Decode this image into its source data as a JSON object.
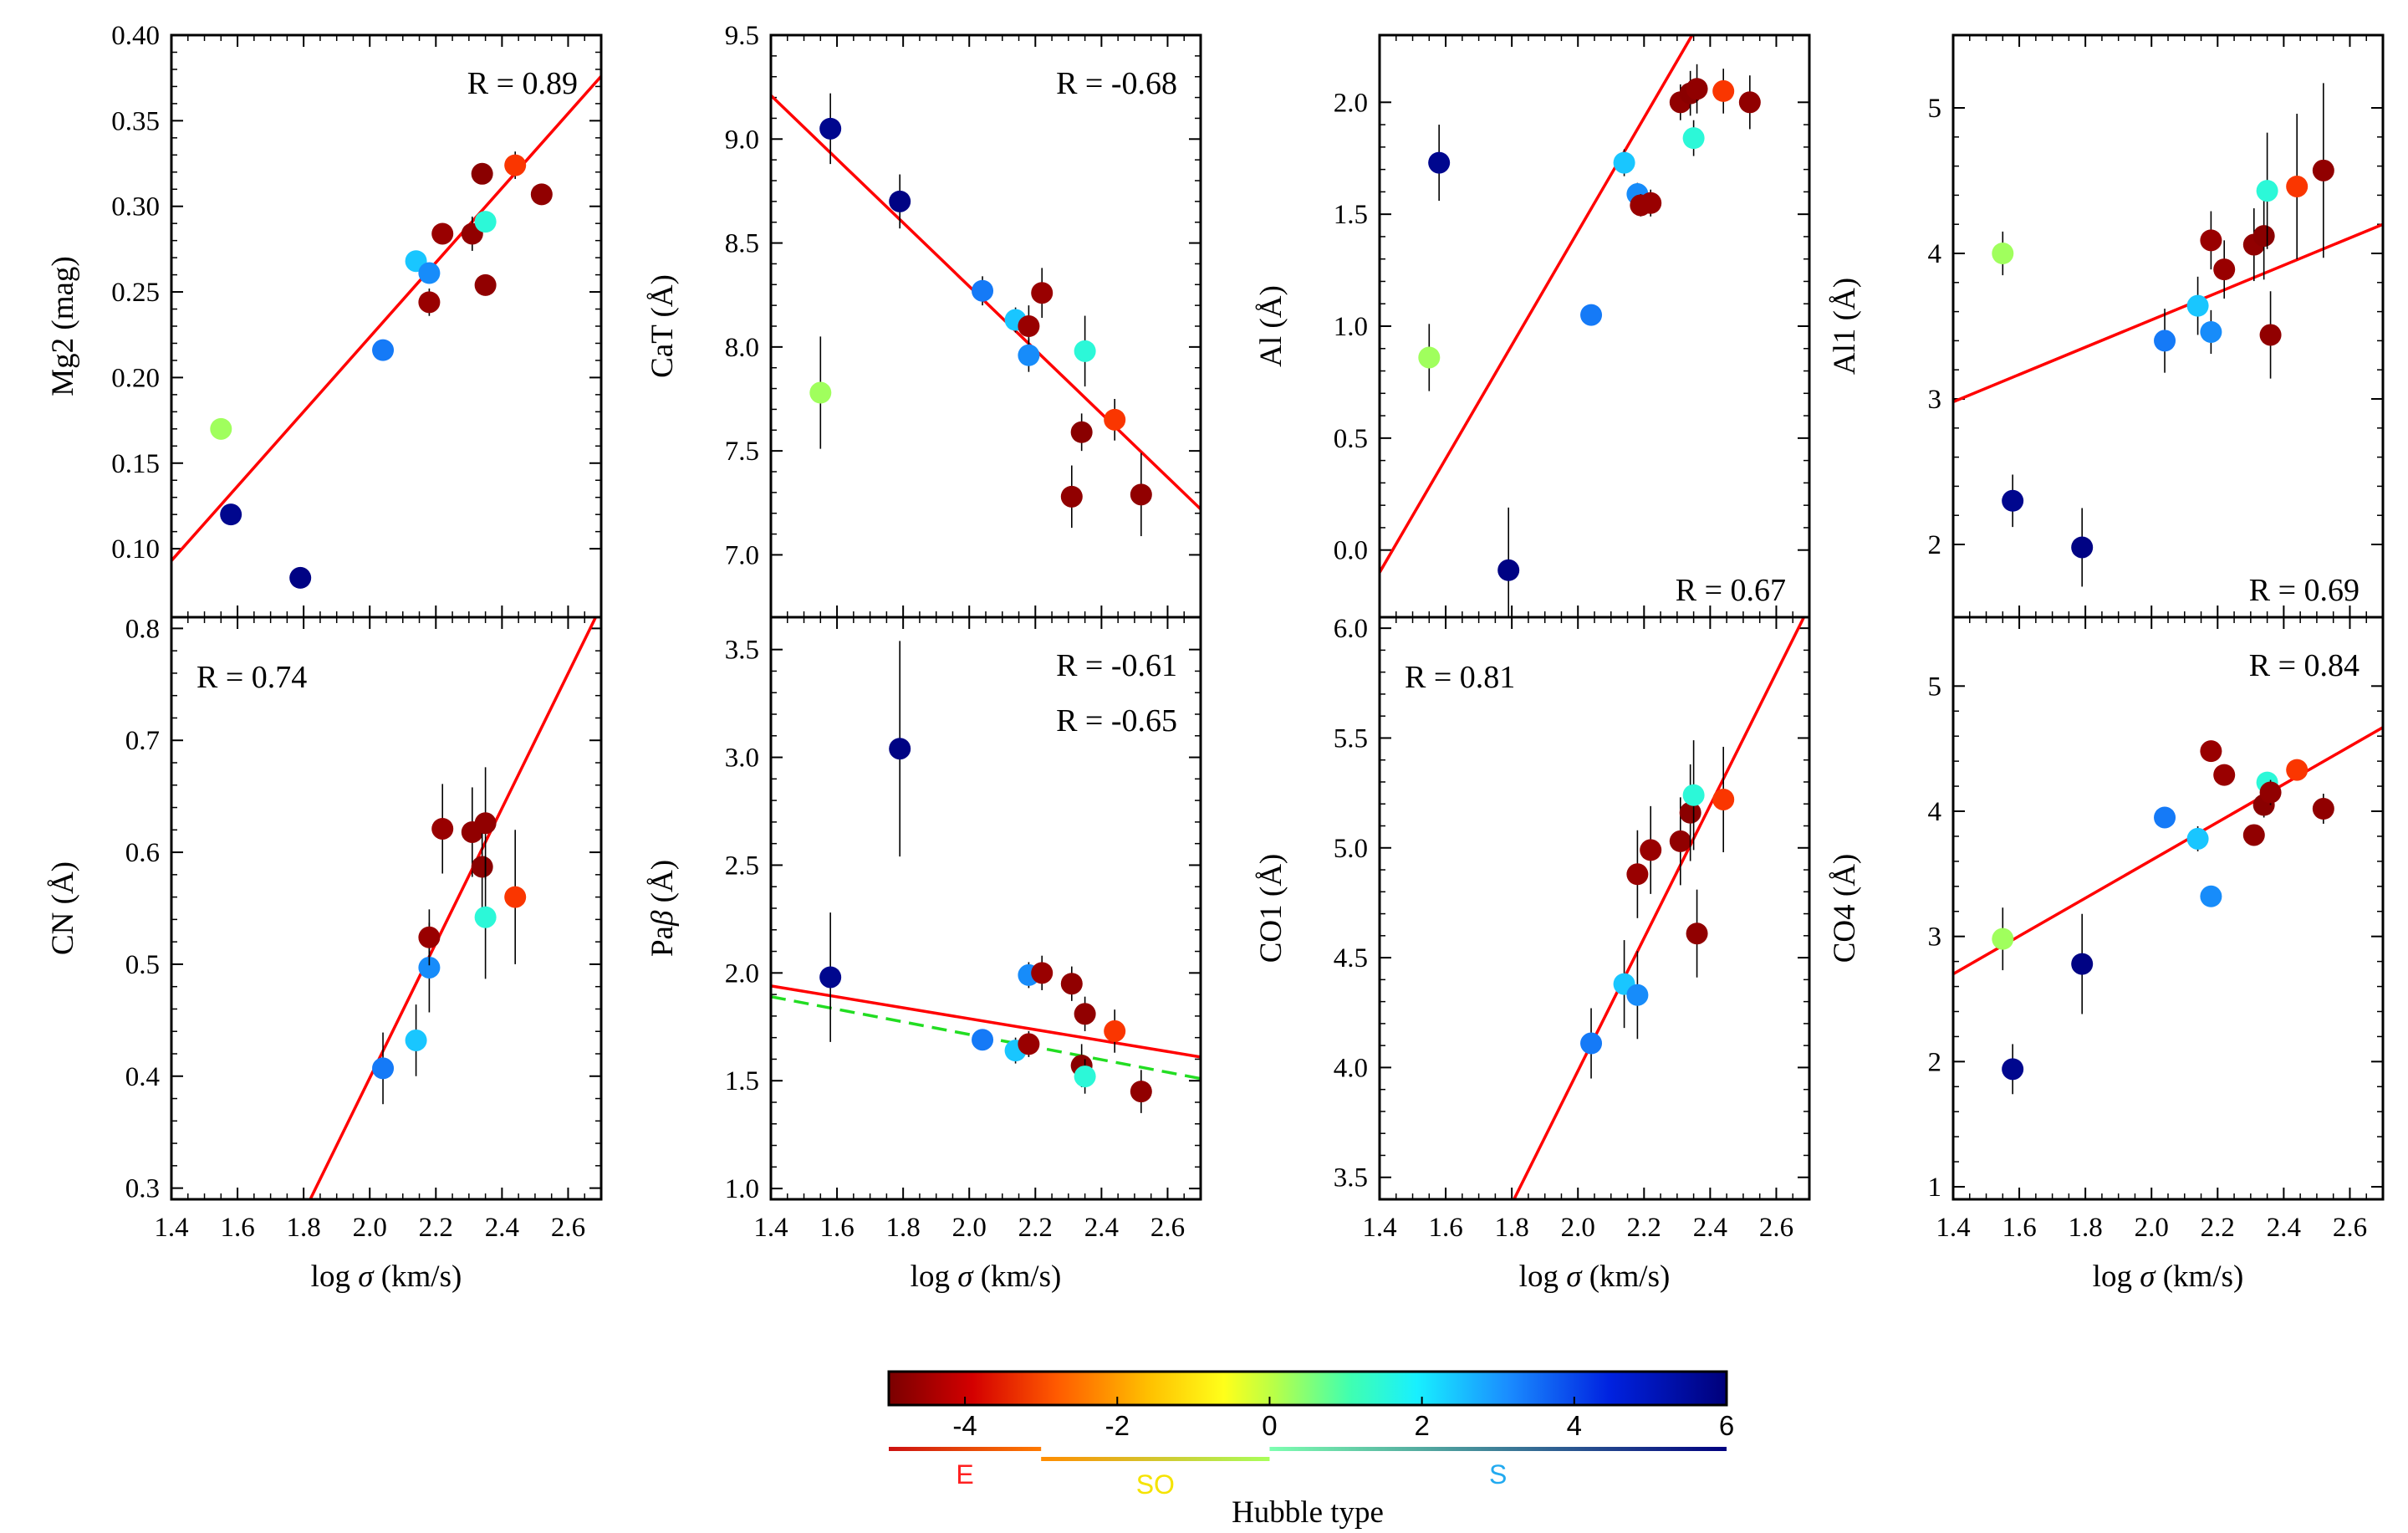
{
  "colorbar": {
    "title": "Hubble type",
    "range": [
      -5,
      6
    ],
    "ticks": [
      "-4",
      "-2",
      "0",
      "2",
      "4",
      "6"
    ],
    "tick_values": [
      -4,
      -2,
      0,
      2,
      4,
      6
    ],
    "groups": [
      {
        "label": "E",
        "from": -5,
        "to": -3,
        "color_from": "#cc1111",
        "color_to": "#ff7a00",
        "label_color": "#ff2020"
      },
      {
        "label": "SO",
        "from": -3,
        "to": 0,
        "color_from": "#ff8c00",
        "color_to": "#a8ff5a",
        "label_color": "#f5e300"
      },
      {
        "label": "S",
        "from": 0,
        "to": 6,
        "color_from": "#7dffb0",
        "color_to": "#00007f",
        "label_color": "#22aaf0"
      }
    ]
  },
  "chart_data": [
    {
      "type": "scatter",
      "ylabel": "Mg2 (mag)",
      "xlabel": "",
      "xlim": [
        1.4,
        2.7
      ],
      "ylim": [
        0.06,
        0.4
      ],
      "yticks": [
        0.1,
        0.15,
        0.2,
        0.25,
        0.3,
        0.35,
        0.4
      ],
      "ytick_labels": [
        "0.10",
        "0.15",
        "0.20",
        "0.25",
        "0.30",
        "0.35",
        "0.40"
      ],
      "r_labels": [
        "R = 0.89"
      ],
      "r_pos": "top-right",
      "fits": [
        {
          "x": [
            1.4,
            2.7
          ],
          "y": [
            0.093,
            0.376
          ],
          "color": "#ff0000",
          "dash": false
        }
      ],
      "points": [
        {
          "x": 1.55,
          "y": 0.17,
          "t": 0.2,
          "err": 0.006
        },
        {
          "x": 1.58,
          "y": 0.12,
          "t": 5.8,
          "err": 0
        },
        {
          "x": 1.79,
          "y": 0.083,
          "t": 5.9,
          "err": 0
        },
        {
          "x": 2.04,
          "y": 0.216,
          "t": 3.8,
          "err": 0
        },
        {
          "x": 2.14,
          "y": 0.268,
          "t": 2.6,
          "err": 0
        },
        {
          "x": 2.18,
          "y": 0.244,
          "t": -4.6,
          "err": 0.008
        },
        {
          "x": 2.18,
          "y": 0.261,
          "t": 3.5,
          "err": 0.006
        },
        {
          "x": 2.22,
          "y": 0.284,
          "t": -4.6,
          "err": 0.006
        },
        {
          "x": 2.31,
          "y": 0.284,
          "t": -4.7,
          "err": 0.01
        },
        {
          "x": 2.34,
          "y": 0.319,
          "t": -4.8,
          "err": 0.006
        },
        {
          "x": 2.35,
          "y": 0.291,
          "t": 1.5,
          "err": 0.006
        },
        {
          "x": 2.35,
          "y": 0.254,
          "t": -4.7,
          "err": 0.006
        },
        {
          "x": 2.44,
          "y": 0.324,
          "t": -3.1,
          "err": 0.008
        },
        {
          "x": 2.52,
          "y": 0.307,
          "t": -4.7,
          "err": 0
        }
      ]
    },
    {
      "type": "scatter",
      "ylabel": "CaT (Å)",
      "xlabel": "",
      "xlim": [
        1.4,
        2.7
      ],
      "ylim": [
        6.7,
        9.5
      ],
      "yticks": [
        7.0,
        7.5,
        8.0,
        8.5,
        9.0,
        9.5
      ],
      "ytick_labels": [
        "7.0",
        "7.5",
        "8.0",
        "8.5",
        "9.0",
        "9.5"
      ],
      "r_labels": [
        "R = -0.68"
      ],
      "r_pos": "top-right",
      "fits": [
        {
          "x": [
            1.4,
            2.7
          ],
          "y": [
            9.21,
            7.22
          ],
          "color": "#ff0000",
          "dash": false
        }
      ],
      "points": [
        {
          "x": 1.55,
          "y": 7.78,
          "t": 0.2,
          "err": 0.27
        },
        {
          "x": 1.58,
          "y": 9.05,
          "t": 5.8,
          "err": 0.17
        },
        {
          "x": 1.79,
          "y": 8.7,
          "t": 5.9,
          "err": 0.13
        },
        {
          "x": 2.04,
          "y": 8.27,
          "t": 3.8,
          "err": 0.07
        },
        {
          "x": 2.14,
          "y": 8.13,
          "t": 2.6,
          "err": 0.06
        },
        {
          "x": 2.18,
          "y": 8.1,
          "t": -4.6,
          "err": 0.1
        },
        {
          "x": 2.18,
          "y": 7.96,
          "t": 3.5,
          "err": 0.08
        },
        {
          "x": 2.22,
          "y": 8.26,
          "t": -4.6,
          "err": 0.12
        },
        {
          "x": 2.31,
          "y": 7.28,
          "t": -4.7,
          "err": 0.15
        },
        {
          "x": 2.34,
          "y": 7.59,
          "t": -4.8,
          "err": 0.09
        },
        {
          "x": 2.35,
          "y": 7.98,
          "t": 1.5,
          "err": 0.17
        },
        {
          "x": 2.44,
          "y": 7.65,
          "t": -3.1,
          "err": 0.1
        },
        {
          "x": 2.52,
          "y": 7.29,
          "t": -4.7,
          "err": 0.2
        }
      ]
    },
    {
      "type": "scatter",
      "ylabel": "Al (Å)",
      "xlabel": "",
      "xlim": [
        1.4,
        2.7
      ],
      "ylim": [
        -0.3,
        2.3
      ],
      "yticks": [
        0.0,
        0.5,
        1.0,
        1.5,
        2.0
      ],
      "ytick_labels": [
        "0.0",
        "0.5",
        "1.0",
        "1.5",
        "2.0"
      ],
      "r_labels": [
        "R = 0.67"
      ],
      "r_pos": "bottom-right",
      "fits": [
        {
          "x": [
            1.4,
            2.7
          ],
          "y": [
            -0.1,
            3.2
          ],
          "color": "#ff0000",
          "dash": false
        }
      ],
      "points": [
        {
          "x": 1.55,
          "y": 0.86,
          "t": 0.2,
          "err": 0.15
        },
        {
          "x": 1.58,
          "y": 1.73,
          "t": 5.8,
          "err": 0.17
        },
        {
          "x": 1.79,
          "y": -0.09,
          "t": 5.9,
          "err": 0.28
        },
        {
          "x": 2.04,
          "y": 1.05,
          "t": 3.8,
          "err": 0
        },
        {
          "x": 2.14,
          "y": 1.73,
          "t": 2.6,
          "err": 0.06
        },
        {
          "x": 2.18,
          "y": 1.59,
          "t": 3.5,
          "err": 0.05
        },
        {
          "x": 2.19,
          "y": 1.54,
          "t": -4.6,
          "err": 0.05
        },
        {
          "x": 2.22,
          "y": 1.55,
          "t": -4.6,
          "err": 0.06
        },
        {
          "x": 2.31,
          "y": 2.0,
          "t": -4.7,
          "err": 0.08
        },
        {
          "x": 2.34,
          "y": 2.04,
          "t": -4.8,
          "err": 0.1
        },
        {
          "x": 2.35,
          "y": 1.84,
          "t": 1.5,
          "err": 0.08
        },
        {
          "x": 2.36,
          "y": 2.06,
          "t": -4.7,
          "err": 0.11
        },
        {
          "x": 2.44,
          "y": 2.05,
          "t": -3.1,
          "err": 0.1
        },
        {
          "x": 2.52,
          "y": 2.0,
          "t": -4.7,
          "err": 0.12
        }
      ]
    },
    {
      "type": "scatter",
      "ylabel": "Al1 (Å)",
      "xlabel": "",
      "xlim": [
        1.4,
        2.7
      ],
      "ylim": [
        1.5,
        5.5
      ],
      "yticks": [
        2,
        3,
        4,
        5
      ],
      "ytick_labels": [
        "2",
        "3",
        "4",
        "5"
      ],
      "r_labels": [
        "R = 0.69"
      ],
      "r_pos": "bottom-right",
      "fits": [
        {
          "x": [
            1.4,
            2.7
          ],
          "y": [
            2.98,
            4.2
          ],
          "color": "#ff0000",
          "dash": false
        }
      ],
      "points": [
        {
          "x": 1.55,
          "y": 4.0,
          "t": 0.2,
          "err": 0.15
        },
        {
          "x": 1.58,
          "y": 2.3,
          "t": 5.8,
          "err": 0.18
        },
        {
          "x": 1.79,
          "y": 1.98,
          "t": 5.9,
          "err": 0.27
        },
        {
          "x": 2.04,
          "y": 3.4,
          "t": 3.8,
          "err": 0.22
        },
        {
          "x": 2.14,
          "y": 3.64,
          "t": 2.6,
          "err": 0.2
        },
        {
          "x": 2.18,
          "y": 3.46,
          "t": 3.5,
          "err": 0.15
        },
        {
          "x": 2.18,
          "y": 4.09,
          "t": -4.6,
          "err": 0.2
        },
        {
          "x": 2.22,
          "y": 3.89,
          "t": -4.6,
          "err": 0.2
        },
        {
          "x": 2.31,
          "y": 4.06,
          "t": -4.7,
          "err": 0.25
        },
        {
          "x": 2.34,
          "y": 4.12,
          "t": -4.8,
          "err": 0.3
        },
        {
          "x": 2.35,
          "y": 4.43,
          "t": 1.5,
          "err": 0.4
        },
        {
          "x": 2.36,
          "y": 3.44,
          "t": -4.7,
          "err": 0.3
        },
        {
          "x": 2.44,
          "y": 4.46,
          "t": -3.1,
          "err": 0.5
        },
        {
          "x": 2.52,
          "y": 4.57,
          "t": -4.7,
          "err": 0.6
        }
      ]
    },
    {
      "type": "scatter",
      "ylabel": "CN (Å)",
      "xlabel": "log σ (km/s)",
      "xlim": [
        1.4,
        2.7
      ],
      "ylim": [
        0.29,
        0.81
      ],
      "yticks": [
        0.3,
        0.4,
        0.5,
        0.6,
        0.7,
        0.8
      ],
      "ytick_labels": [
        "0.3",
        "0.4",
        "0.5",
        "0.6",
        "0.7",
        "0.8"
      ],
      "xticks": [
        1.4,
        1.6,
        1.8,
        2.0,
        2.2,
        2.4,
        2.6
      ],
      "xtick_labels": [
        "1.4",
        "1.6",
        "1.8",
        "2.0",
        "2.2",
        "2.4",
        "2.6"
      ],
      "r_labels": [
        "R = 0.74"
      ],
      "r_pos": "top-left",
      "fits": [
        {
          "x": [
            1.82,
            2.7
          ],
          "y": [
            0.29,
            0.82
          ],
          "color": "#ff0000",
          "dash": false
        }
      ],
      "points": [
        {
          "x": 2.04,
          "y": 0.407,
          "t": 3.8,
          "err": 0.032
        },
        {
          "x": 2.14,
          "y": 0.432,
          "t": 2.6,
          "err": 0.032
        },
        {
          "x": 2.18,
          "y": 0.497,
          "t": 3.5,
          "err": 0.04
        },
        {
          "x": 2.18,
          "y": 0.524,
          "t": -4.6,
          "err": 0.025
        },
        {
          "x": 2.22,
          "y": 0.621,
          "t": -4.6,
          "err": 0.04
        },
        {
          "x": 2.31,
          "y": 0.618,
          "t": -4.7,
          "err": 0.04
        },
        {
          "x": 2.34,
          "y": 0.587,
          "t": -4.8,
          "err": 0.045
        },
        {
          "x": 2.35,
          "y": 0.626,
          "t": -4.7,
          "err": 0.05
        },
        {
          "x": 2.35,
          "y": 0.542,
          "t": 1.5,
          "err": 0.055
        },
        {
          "x": 2.44,
          "y": 0.56,
          "t": -3.1,
          "err": 0.06
        }
      ]
    },
    {
      "type": "scatter",
      "ylabel": "Paβ (Å)",
      "xlabel": "log σ (km/s)",
      "xlim": [
        1.4,
        2.7
      ],
      "ylim": [
        0.95,
        3.65
      ],
      "yticks": [
        1.0,
        1.5,
        2.0,
        2.5,
        3.0,
        3.5
      ],
      "ytick_labels": [
        "1.0",
        "1.5",
        "2.0",
        "2.5",
        "3.0",
        "3.5"
      ],
      "xticks": [
        1.4,
        1.6,
        1.8,
        2.0,
        2.2,
        2.4,
        2.6
      ],
      "xtick_labels": [
        "1.4",
        "1.6",
        "1.8",
        "2.0",
        "2.2",
        "2.4",
        "2.6"
      ],
      "r_labels": [
        "R = -0.61",
        "R = -0.65"
      ],
      "r_pos": "top-right",
      "fits": [
        {
          "x": [
            1.4,
            2.7
          ],
          "y": [
            1.94,
            1.61
          ],
          "color": "#ff0000",
          "dash": false
        },
        {
          "x": [
            1.4,
            2.7
          ],
          "y": [
            1.89,
            1.51
          ],
          "color": "#22dd22",
          "dash": true
        }
      ],
      "points": [
        {
          "x": 1.58,
          "y": 1.98,
          "t": 5.8,
          "err": 0.3
        },
        {
          "x": 1.79,
          "y": 3.04,
          "t": 5.9,
          "err": 0.5
        },
        {
          "x": 2.04,
          "y": 1.69,
          "t": 3.8,
          "err": 0
        },
        {
          "x": 2.14,
          "y": 1.64,
          "t": 2.6,
          "err": 0.06
        },
        {
          "x": 2.18,
          "y": 1.99,
          "t": 3.5,
          "err": 0.06
        },
        {
          "x": 2.18,
          "y": 1.67,
          "t": -4.6,
          "err": 0.06
        },
        {
          "x": 2.22,
          "y": 2.0,
          "t": -4.6,
          "err": 0.08
        },
        {
          "x": 2.31,
          "y": 1.95,
          "t": -4.7,
          "err": 0.08
        },
        {
          "x": 2.34,
          "y": 1.57,
          "t": -4.8,
          "err": 0.1
        },
        {
          "x": 2.35,
          "y": 1.81,
          "t": -4.7,
          "err": 0.08
        },
        {
          "x": 2.35,
          "y": 1.52,
          "t": 1.5,
          "err": 0.08
        },
        {
          "x": 2.44,
          "y": 1.73,
          "t": -3.1,
          "err": 0.1
        },
        {
          "x": 2.52,
          "y": 1.45,
          "t": -4.7,
          "err": 0.1
        }
      ]
    },
    {
      "type": "scatter",
      "ylabel": "CO1 (Å)",
      "xlabel": "log σ (km/s)",
      "xlim": [
        1.4,
        2.7
      ],
      "ylim": [
        3.4,
        6.05
      ],
      "yticks": [
        3.5,
        4.0,
        4.5,
        5.0,
        5.5,
        6.0
      ],
      "ytick_labels": [
        "3.5",
        "4.0",
        "4.5",
        "5.0",
        "5.5",
        "6.0"
      ],
      "xticks": [
        1.4,
        1.6,
        1.8,
        2.0,
        2.2,
        2.4,
        2.6
      ],
      "xtick_labels": [
        "1.4",
        "1.6",
        "1.8",
        "2.0",
        "2.2",
        "2.4",
        "2.6"
      ],
      "r_labels": [
        "R = 0.81"
      ],
      "r_pos": "top-left",
      "fits": [
        {
          "x": [
            1.8,
            2.7
          ],
          "y": [
            3.38,
            6.1
          ],
          "color": "#ff0000",
          "dash": false
        }
      ],
      "points": [
        {
          "x": 2.04,
          "y": 4.11,
          "t": 3.8,
          "err": 0.16
        },
        {
          "x": 2.14,
          "y": 4.38,
          "t": 2.6,
          "err": 0.2
        },
        {
          "x": 2.18,
          "y": 4.33,
          "t": 3.5,
          "err": 0.2
        },
        {
          "x": 2.18,
          "y": 4.88,
          "t": -4.6,
          "err": 0.2
        },
        {
          "x": 2.22,
          "y": 4.99,
          "t": -4.6,
          "err": 0.2
        },
        {
          "x": 2.31,
          "y": 5.03,
          "t": -4.7,
          "err": 0.2
        },
        {
          "x": 2.34,
          "y": 5.16,
          "t": -4.8,
          "err": 0.22
        },
        {
          "x": 2.35,
          "y": 5.24,
          "t": 1.5,
          "err": 0.25
        },
        {
          "x": 2.36,
          "y": 4.61,
          "t": -4.7,
          "err": 0.2
        },
        {
          "x": 2.44,
          "y": 5.22,
          "t": -3.1,
          "err": 0.24
        }
      ]
    },
    {
      "type": "scatter",
      "ylabel": "CO4 (Å)",
      "xlabel": "log σ (km/s)",
      "xlim": [
        1.4,
        2.7
      ],
      "ylim": [
        0.9,
        5.55
      ],
      "yticks": [
        1,
        2,
        3,
        4,
        5
      ],
      "ytick_labels": [
        "1",
        "2",
        "3",
        "4",
        "5"
      ],
      "xticks": [
        1.4,
        1.6,
        1.8,
        2.0,
        2.2,
        2.4,
        2.6
      ],
      "xtick_labels": [
        "1.4",
        "1.6",
        "1.8",
        "2.0",
        "2.2",
        "2.4",
        "2.6"
      ],
      "r_labels": [
        "R = 0.84"
      ],
      "r_pos": "top-right",
      "fits": [
        {
          "x": [
            1.4,
            2.7
          ],
          "y": [
            2.7,
            4.67
          ],
          "color": "#ff0000",
          "dash": false
        }
      ],
      "points": [
        {
          "x": 1.55,
          "y": 2.98,
          "t": 0.2,
          "err": 0.25
        },
        {
          "x": 1.58,
          "y": 1.94,
          "t": 5.8,
          "err": 0.2
        },
        {
          "x": 1.79,
          "y": 2.78,
          "t": 5.9,
          "err": 0.4
        },
        {
          "x": 2.04,
          "y": 3.95,
          "t": 3.8,
          "err": 0
        },
        {
          "x": 2.14,
          "y": 3.78,
          "t": 2.6,
          "err": 0.1
        },
        {
          "x": 2.18,
          "y": 3.32,
          "t": 3.5,
          "err": 0
        },
        {
          "x": 2.18,
          "y": 4.48,
          "t": -4.6,
          "err": 0
        },
        {
          "x": 2.22,
          "y": 4.29,
          "t": -4.6,
          "err": 0
        },
        {
          "x": 2.31,
          "y": 3.81,
          "t": -4.7,
          "err": 0
        },
        {
          "x": 2.34,
          "y": 4.05,
          "t": -4.8,
          "err": 0.1
        },
        {
          "x": 2.35,
          "y": 4.23,
          "t": 1.5,
          "err": 0.06
        },
        {
          "x": 2.36,
          "y": 4.15,
          "t": -4.7,
          "err": 0.1
        },
        {
          "x": 2.44,
          "y": 4.33,
          "t": -3.1,
          "err": 0.08
        },
        {
          "x": 2.52,
          "y": 4.02,
          "t": -4.7,
          "err": 0.12
        }
      ]
    }
  ]
}
